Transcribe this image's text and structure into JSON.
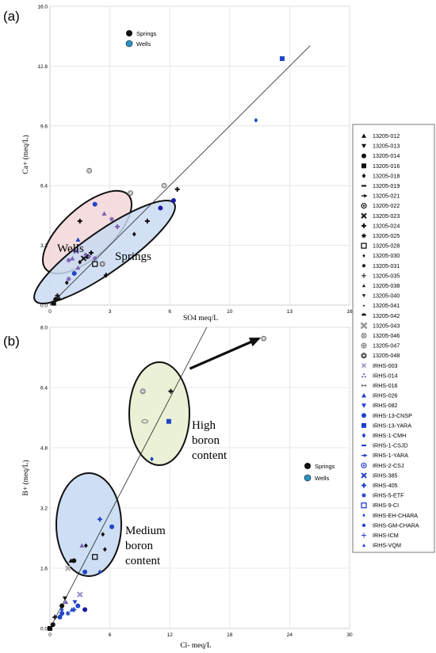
{
  "chart_data": [
    {
      "type": "scatter",
      "panel_label": "(a)",
      "xlabel": "SO4 meq/L",
      "ylabel": "Ca+ (meq/L)",
      "xlim": [
        0,
        16
      ],
      "ylim": [
        0,
        16.0
      ],
      "x_ticks": [
        "0",
        "3",
        "6",
        "10",
        "13",
        "16"
      ],
      "y_ticks": [
        "0.0",
        "3.2",
        "6.4",
        "9.6",
        "12.8",
        "16.0"
      ],
      "legend": [
        {
          "label": "Springs",
          "color": "#111111"
        },
        {
          "label": "Wells",
          "color": "#2a93c4"
        }
      ],
      "legend_placement": "top-left",
      "regions": [
        {
          "label": "Wells",
          "color": "#f3d6d8"
        },
        {
          "label": "Springs",
          "color": "#c9daf3"
        }
      ],
      "trendline": {
        "x": [
          0,
          13.9
        ],
        "y": [
          0,
          13.9
        ]
      },
      "series": [
        {
          "x": 0.2,
          "y": 0.1,
          "marker": "square",
          "color": "#111111"
        },
        {
          "x": 0.3,
          "y": 0.3,
          "marker": "circle",
          "color": "#111111"
        },
        {
          "x": 0.4,
          "y": 0.5,
          "marker": "plus",
          "color": "#111111"
        },
        {
          "x": 0.5,
          "y": 0.35,
          "marker": "tri-up",
          "color": "#111111"
        },
        {
          "x": 0.9,
          "y": 1.2,
          "marker": "diamond",
          "color": "#111111"
        },
        {
          "x": 1.0,
          "y": 1.4,
          "marker": "star",
          "color": "#7a5fb0"
        },
        {
          "x": 1.3,
          "y": 1.7,
          "marker": "circle",
          "color": "#2045c8"
        },
        {
          "x": 1.5,
          "y": 2.0,
          "marker": "tri-up",
          "color": "#7a5fb0"
        },
        {
          "x": 1.6,
          "y": 2.3,
          "marker": "diamond",
          "color": "#111111"
        },
        {
          "x": 1.8,
          "y": 2.5,
          "marker": "x",
          "color": "#111111"
        },
        {
          "x": 2.0,
          "y": 2.6,
          "marker": "circle",
          "color": "#111111"
        },
        {
          "x": 2.2,
          "y": 2.8,
          "marker": "plus",
          "color": "#111111"
        },
        {
          "x": 2.4,
          "y": 2.2,
          "marker": "square-open",
          "color": "#111111"
        },
        {
          "x": 2.8,
          "y": 2.2,
          "marker": "circle-open",
          "color": "#555555"
        },
        {
          "x": 3.0,
          "y": 1.6,
          "marker": "plus",
          "color": "#111111"
        },
        {
          "x": 4.5,
          "y": 3.8,
          "marker": "diamond",
          "color": "#111111"
        },
        {
          "x": 5.2,
          "y": 4.5,
          "marker": "plus",
          "color": "#111111"
        },
        {
          "x": 5.9,
          "y": 5.2,
          "marker": "circle",
          "color": "#1a1aa8"
        },
        {
          "x": 1.0,
          "y": 2.4,
          "marker": "star",
          "color": "#7a5fb0"
        },
        {
          "x": 1.2,
          "y": 2.5,
          "marker": "tri-up",
          "color": "#7a5fb0"
        },
        {
          "x": 1.4,
          "y": 2.9,
          "marker": "x",
          "color": "#6a4fb0"
        },
        {
          "x": 1.5,
          "y": 3.5,
          "marker": "tri-up",
          "color": "#2045c8"
        },
        {
          "x": 1.6,
          "y": 4.5,
          "marker": "plus",
          "color": "#111111"
        },
        {
          "x": 1.9,
          "y": 2.7,
          "marker": "diamond",
          "color": "#7a5fb0"
        },
        {
          "x": 2.1,
          "y": 2.6,
          "marker": "diamond",
          "color": "#7a5fb0"
        },
        {
          "x": 2.4,
          "y": 2.5,
          "marker": "star",
          "color": "#7a5fb0"
        },
        {
          "x": 2.4,
          "y": 5.4,
          "marker": "circle",
          "color": "#2045c8"
        },
        {
          "x": 2.9,
          "y": 4.9,
          "marker": "tri-up",
          "color": "#7a5fb0"
        },
        {
          "x": 3.3,
          "y": 4.6,
          "marker": "star",
          "color": "#7a5fb0"
        },
        {
          "x": 3.6,
          "y": 4.2,
          "marker": "plus",
          "color": "#7a5fb0"
        },
        {
          "x": 2.1,
          "y": 7.2,
          "marker": "circle-open",
          "color": "#777777"
        },
        {
          "x": 4.3,
          "y": 6.0,
          "marker": "circle-open",
          "color": "#777777"
        },
        {
          "x": 6.1,
          "y": 6.4,
          "marker": "circle-open",
          "color": "#777777"
        },
        {
          "x": 6.6,
          "y": 5.6,
          "marker": "circle",
          "color": "#1a1aa8"
        },
        {
          "x": 6.8,
          "y": 6.2,
          "marker": "plus",
          "color": "#111111"
        },
        {
          "x": 11.0,
          "y": 9.9,
          "marker": "diamond",
          "color": "#2045c8"
        },
        {
          "x": 12.4,
          "y": 13.2,
          "marker": "square",
          "color": "#2045c8"
        }
      ]
    },
    {
      "type": "scatter",
      "panel_label": "(b)",
      "xlabel": "Cl- meq/L",
      "ylabel": "B+ (meq/L)",
      "xlim": [
        0,
        30
      ],
      "ylim": [
        0,
        8.0
      ],
      "x_ticks": [
        "0",
        "6",
        "12",
        "18",
        "24",
        "30"
      ],
      "y_ticks": [
        "0.0",
        "1.6",
        "3.2",
        "4.8",
        "6.4",
        "8.0"
      ],
      "legend": [
        {
          "label": "Springs",
          "color": "#111111"
        },
        {
          "label": "Wells",
          "color": "#2a93c4"
        }
      ],
      "legend_placement": "right",
      "regions": [
        {
          "label": "High boron content",
          "color": "#e8f0d2"
        },
        {
          "label": "Medium boron content",
          "color": "#c9daf3"
        }
      ],
      "trendline": {
        "x": [
          0,
          15.7
        ],
        "y": [
          0,
          8.0
        ]
      },
      "arrow": {
        "from": [
          14,
          6.9
        ],
        "to": [
          20.9,
          7.7
        ]
      },
      "series": [
        {
          "x": 0.0,
          "y": 0.0,
          "marker": "square",
          "color": "#111111"
        },
        {
          "x": 0.3,
          "y": 0.1,
          "marker": "circle",
          "color": "#111111"
        },
        {
          "x": 0.5,
          "y": 0.3,
          "marker": "plus",
          "color": "#111111"
        },
        {
          "x": 1.0,
          "y": 0.3,
          "marker": "circle",
          "color": "#2045c8"
        },
        {
          "x": 1.2,
          "y": 0.6,
          "marker": "circle",
          "color": "#111111"
        },
        {
          "x": 1.6,
          "y": 0.7,
          "marker": "tri-up",
          "color": "#7a5fb0"
        },
        {
          "x": 1.2,
          "y": 0.5,
          "marker": "diamond",
          "color": "#2045c8"
        },
        {
          "x": 1.5,
          "y": 0.8,
          "marker": "tri-down",
          "color": "#111111"
        },
        {
          "x": 1.8,
          "y": 0.4,
          "marker": "star",
          "color": "#2045c8"
        },
        {
          "x": 2.2,
          "y": 0.5,
          "marker": "tri-up",
          "color": "#2045c8"
        },
        {
          "x": 2.4,
          "y": 0.5,
          "marker": "plus",
          "color": "#2045c8"
        },
        {
          "x": 2.5,
          "y": 0.7,
          "marker": "tri-down",
          "color": "#2045c8"
        },
        {
          "x": 2.8,
          "y": 0.6,
          "marker": "circle",
          "color": "#2045c8"
        },
        {
          "x": 3.0,
          "y": 0.9,
          "marker": "x",
          "color": "#9a8fd0"
        },
        {
          "x": 3.5,
          "y": 0.5,
          "marker": "circle",
          "color": "#1a1aa8"
        },
        {
          "x": 1.2,
          "y": 0.4,
          "marker": "circle",
          "color": "#2045c8"
        },
        {
          "x": 1.8,
          "y": 1.6,
          "marker": "x",
          "color": "#aaaaaa"
        },
        {
          "x": 2.1,
          "y": 1.8,
          "marker": "tri-up",
          "color": "#111111"
        },
        {
          "x": 2.4,
          "y": 1.8,
          "marker": "circle",
          "color": "#111111"
        },
        {
          "x": 3.5,
          "y": 1.5,
          "marker": "circle",
          "color": "#2045c8"
        },
        {
          "x": 3.2,
          "y": 2.2,
          "marker": "tri-up",
          "color": "#7a5fb0"
        },
        {
          "x": 3.6,
          "y": 2.2,
          "marker": "diamond",
          "color": "#111111"
        },
        {
          "x": 4.5,
          "y": 1.9,
          "marker": "square-open",
          "color": "#111111"
        },
        {
          "x": 5.0,
          "y": 1.5,
          "marker": "diamond",
          "color": "#2045c8"
        },
        {
          "x": 5.5,
          "y": 2.1,
          "marker": "diamond",
          "color": "#111111"
        },
        {
          "x": 5.3,
          "y": 2.5,
          "marker": "diamond",
          "color": "#111111"
        },
        {
          "x": 5.0,
          "y": 2.9,
          "marker": "plus",
          "color": "#2045c8"
        },
        {
          "x": 6.2,
          "y": 2.7,
          "marker": "circle",
          "color": "#2045c8"
        },
        {
          "x": 9.3,
          "y": 6.3,
          "marker": "circle-open",
          "color": "#777777"
        },
        {
          "x": 9.5,
          "y": 5.5,
          "marker": "ellipse-open",
          "color": "#777777"
        },
        {
          "x": 11.9,
          "y": 5.5,
          "marker": "square",
          "color": "#2045c8"
        },
        {
          "x": 12.1,
          "y": 6.3,
          "marker": "plus",
          "color": "#111111"
        },
        {
          "x": 10.2,
          "y": 4.5,
          "marker": "diamond",
          "color": "#2045c8"
        },
        {
          "x": 21.4,
          "y": 7.7,
          "marker": "circle-open",
          "color": "#777777"
        }
      ]
    }
  ],
  "panels": {
    "a_label": "(a)",
    "b_label": "(b)",
    "a_region_wells": "Wells",
    "a_region_springs": "Springs",
    "b_region_high_1": "High",
    "b_region_high_2": "boron",
    "b_region_high_3": "content",
    "b_region_med_1": "Medium",
    "b_region_med_2": "boron",
    "b_region_med_3": "content"
  },
  "sample_legend": [
    {
      "label": "13205-012",
      "marker": "tri-up"
    },
    {
      "label": "13205-013",
      "marker": "tri-down"
    },
    {
      "label": "13205-014",
      "marker": "circle"
    },
    {
      "label": "13205-016",
      "marker": "square"
    },
    {
      "label": "13205-018",
      "marker": "diamond"
    },
    {
      "label": "13205-019",
      "marker": "dash"
    },
    {
      "label": "13205-021",
      "marker": "arrow"
    },
    {
      "label": "13205-022",
      "marker": "circle-dot"
    },
    {
      "label": "13205-023",
      "marker": "x"
    },
    {
      "label": "13205-024",
      "marker": "plus"
    },
    {
      "label": "13205-025",
      "marker": "sun"
    },
    {
      "label": "13205-028",
      "marker": "square-open"
    },
    {
      "label": "13205-030",
      "marker": "diamond-small"
    },
    {
      "label": "13205-031",
      "marker": "circle-small"
    },
    {
      "label": "13205-035",
      "marker": "plus-thin"
    },
    {
      "label": "13205-038",
      "marker": "tri-up-small"
    },
    {
      "label": "13205-040",
      "marker": "tri-down-small"
    },
    {
      "label": "13205-041",
      "marker": "diamond-tiny"
    },
    {
      "label": "13205-042",
      "marker": "circle-half"
    },
    {
      "label": "13205-043",
      "marker": "x-big"
    },
    {
      "label": "13205-046",
      "marker": "circle-x"
    },
    {
      "label": "13205-047",
      "marker": "circle-plus"
    },
    {
      "label": "13205-048",
      "marker": "circle-open"
    },
    {
      "label": "IRHS-003",
      "marker": "x-light"
    },
    {
      "label": "IRHS-014",
      "marker": "tri-dots"
    },
    {
      "label": "IRHS-016",
      "marker": "arrow-double"
    },
    {
      "label": "IRHS-026",
      "marker": "tri-up-blue"
    },
    {
      "label": "IRHS-082",
      "marker": "tri-down-blue"
    },
    {
      "label": "IRHS-13-CNSP",
      "marker": "circle-blue"
    },
    {
      "label": "IRHS-13-YARA",
      "marker": "square-blue"
    },
    {
      "label": "IRHS-1-CMH",
      "marker": "diamond-blue"
    },
    {
      "label": "IRHS-1-CSJD",
      "marker": "dash-blue"
    },
    {
      "label": "IRHS-1-YARA",
      "marker": "arrow-blue"
    },
    {
      "label": "IRHS-2-CSJ",
      "marker": "circle-dot-blue"
    },
    {
      "label": "IRHS-385",
      "marker": "x-blue"
    },
    {
      "label": "IRHS-405",
      "marker": "plus-blue"
    },
    {
      "label": "IRHS-5-ETF",
      "marker": "sun-blue"
    },
    {
      "label": "IRHS-9-CI",
      "marker": "square-open-blue"
    },
    {
      "label": "IRHS-EH-CHARA",
      "marker": "diamond-small-blue"
    },
    {
      "label": "IRHS-GM-CHARA",
      "marker": "circle-small-blue"
    },
    {
      "label": "IRHS-ICM",
      "marker": "plus-thin-blue"
    },
    {
      "label": "IRHS-VQM",
      "marker": "tri-up-small-blue"
    }
  ]
}
